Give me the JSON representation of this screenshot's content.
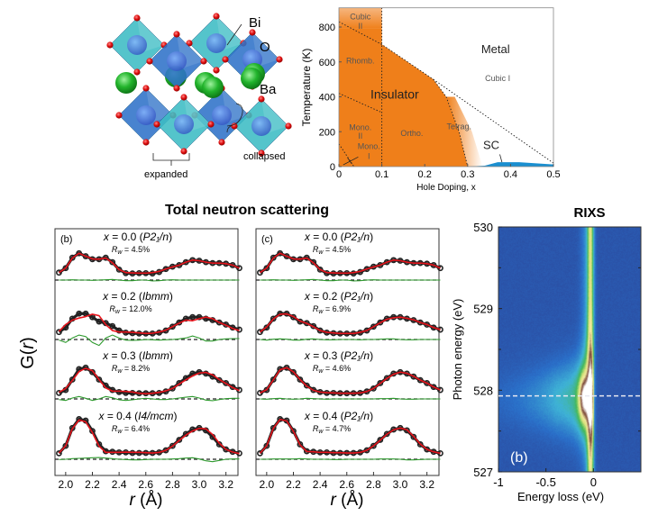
{
  "structure": {
    "labels": {
      "bi": "Bi",
      "o": "O",
      "ba": "Ba",
      "collapsed": "collapsed",
      "expanded": "expanded"
    },
    "colors": {
      "octahedron_light": "#3cbcc4",
      "octahedron_dark": "#2f72c8",
      "bi_atom": "#3f7fd8",
      "o_atom": "#e01010",
      "ba_atom": "#22b42c"
    }
  },
  "phase_diagram": {
    "ylabel": "Temperature (K)",
    "xlabel": "Hole Doping, x",
    "xticks": [
      "0",
      "0.1",
      "0.2",
      "0.3",
      "0.4",
      "0.5"
    ],
    "yticks": [
      "0",
      "200",
      "400",
      "600",
      "800"
    ],
    "xlim": [
      0,
      0.5
    ],
    "ylim": [
      0,
      910
    ],
    "regions": {
      "cubic2_a": "Cubic",
      "cubic2_b": "II",
      "rhomb": "Rhomb.",
      "insulator": "Insulator",
      "mono2_a": "Mono.",
      "mono2_b": "II",
      "mono1_a": "Mono.",
      "mono1_b": "I",
      "ortho": "Ortho.",
      "tetrag": "Tetrag.",
      "metal": "Metal",
      "cubic1": "Cubic I",
      "sc": "SC"
    },
    "boundaries": {
      "insulator_metal": [
        [
          0,
          830
        ],
        [
          0.1,
          700
        ],
        [
          0.22,
          500
        ],
        [
          0.25,
          400
        ],
        [
          0.28,
          200
        ],
        [
          0.3,
          0
        ]
      ],
      "tetragonal_cubic": [
        [
          0.22,
          500
        ],
        [
          0.5,
          20
        ]
      ],
      "rhomb_mono": [
        [
          0,
          420
        ],
        [
          0.1,
          310
        ]
      ],
      "mono2_mono1": [
        [
          0,
          130
        ],
        [
          0.035,
          0
        ]
      ],
      "x_0_1": [
        [
          0.1,
          0
        ],
        [
          0.1,
          910
        ]
      ],
      "sc_dome": [
        [
          0.3,
          0
        ],
        [
          0.34,
          5
        ],
        [
          0.37,
          25
        ],
        [
          0.42,
          25
        ],
        [
          0.5,
          12
        ],
        [
          0.5,
          0
        ]
      ]
    },
    "colors": {
      "insulator": "#ef7f1a",
      "sc": "#1a8fd0"
    }
  },
  "neutron": {
    "title": "Total neutron scattering",
    "ylabel_main": "G(",
    "ylabel_var": "r",
    "ylabel_end": ")",
    "xlabel_var": "r",
    "xlabel_unit": " (Å)",
    "x_symbol": "x",
    "rw_symbol": "R",
    "rw_sub": "w",
    "colors": {
      "data": "#222222",
      "fit": "#e8141c",
      "difference": "#2e9a2e"
    }
  },
  "chart_data": [
    {
      "type": "line",
      "panel": "(b)",
      "xlim": [
        1.92,
        3.29
      ],
      "xticks": [
        "2.0",
        "2.2",
        "2.4",
        "2.6",
        "2.8",
        "3.0",
        "3.2"
      ],
      "r": [
        1.95,
        2.0,
        2.05,
        2.1,
        2.15,
        2.2,
        2.25,
        2.3,
        2.35,
        2.4,
        2.45,
        2.5,
        2.55,
        2.6,
        2.65,
        2.7,
        2.75,
        2.8,
        2.85,
        2.9,
        2.95,
        3.0,
        3.05,
        3.1,
        3.15,
        3.2,
        3.25,
        3.3
      ],
      "series": [
        {
          "x": "0.0",
          "space_group": "P2₁/n",
          "rw": "4.5%",
          "observed": [
            0.1,
            0.25,
            0.6,
            0.75,
            0.65,
            0.55,
            0.55,
            0.6,
            0.45,
            0.2,
            0.08,
            0.07,
            0.08,
            0.08,
            0.07,
            0.12,
            0.22,
            0.3,
            0.35,
            0.45,
            0.52,
            0.5,
            0.45,
            0.42,
            0.42,
            0.4,
            0.35,
            0.25
          ],
          "difference": [
            0,
            0,
            0.01,
            0,
            0,
            -0.01,
            0,
            0.01,
            0.02,
            0,
            -0.02,
            -0.02,
            0,
            0,
            -0.03,
            -0.02,
            0,
            0.01,
            0,
            0,
            0,
            0,
            0,
            0,
            0,
            0,
            0,
            0
          ]
        },
        {
          "x": "0.2",
          "space_group": "Ibmm",
          "rw": "12.0%",
          "observed": [
            0.1,
            0.25,
            0.55,
            0.72,
            0.72,
            0.6,
            0.45,
            0.4,
            0.3,
            0.15,
            0.08,
            0.06,
            0.05,
            0.05,
            0.05,
            0.08,
            0.15,
            0.28,
            0.42,
            0.55,
            0.6,
            0.6,
            0.55,
            0.5,
            0.42,
            0.35,
            0.25,
            0.18
          ],
          "difference": [
            -0.02,
            -0.1,
            0.05,
            0.15,
            0.1,
            -0.1,
            -0.2,
            0.05,
            0.15,
            0.05,
            -0.02,
            -0.03,
            -0.02,
            0,
            -0.01,
            -0.02,
            -0.01,
            0,
            0.02,
            0.05,
            0.12,
            0.05,
            -0.05,
            -0.05,
            0,
            0.02,
            0.03,
            0.03
          ]
        },
        {
          "x": "0.3",
          "space_group": "Ibmm",
          "rw": "8.2%",
          "observed": [
            0.05,
            0.15,
            0.5,
            0.85,
            0.9,
            0.75,
            0.5,
            0.3,
            0.15,
            0.08,
            0.05,
            0.05,
            0.04,
            0.04,
            0.04,
            0.05,
            0.1,
            0.2,
            0.38,
            0.55,
            0.7,
            0.75,
            0.7,
            0.6,
            0.48,
            0.38,
            0.25,
            0.15
          ],
          "difference": [
            -0.02,
            -0.05,
            0.03,
            0.08,
            0.02,
            -0.05,
            0,
            0.08,
            0.04,
            -0.03,
            -0.05,
            -0.03,
            0,
            0.02,
            0,
            -0.02,
            -0.02,
            0,
            0.03,
            0.06,
            0.08,
            0.03,
            -0.04,
            -0.06,
            -0.02,
            0.01,
            0.02,
            0.02
          ]
        },
        {
          "x": "0.4",
          "space_group": "I4/mcm",
          "rw": "6.4%",
          "observed": [
            0.05,
            0.3,
            0.9,
            1.2,
            1.15,
            0.8,
            0.35,
            0.12,
            0.1,
            0.08,
            0.08,
            0.06,
            0.06,
            0.06,
            0.06,
            0.08,
            0.15,
            0.3,
            0.5,
            0.7,
            0.85,
            0.9,
            0.82,
            0.6,
            0.35,
            0.18,
            0.1,
            0.05
          ],
          "difference": [
            -0.01,
            0,
            0.02,
            0.03,
            0.04,
            0.05,
            0.06,
            0.04,
            0.02,
            0,
            -0.01,
            -0.02,
            -0.02,
            -0.01,
            0,
            0,
            0,
            0.01,
            0.02,
            0.04,
            0.05,
            0.01,
            -0.05,
            -0.08,
            -0.04,
            0,
            0.01,
            0.01
          ]
        }
      ]
    },
    {
      "type": "line",
      "panel": "(c)",
      "xlim": [
        1.92,
        3.29
      ],
      "xticks": [
        "2.0",
        "2.2",
        "2.4",
        "2.6",
        "2.8",
        "3.0",
        "3.2"
      ],
      "r": [
        1.95,
        2.0,
        2.05,
        2.1,
        2.15,
        2.2,
        2.25,
        2.3,
        2.35,
        2.4,
        2.45,
        2.5,
        2.55,
        2.6,
        2.65,
        2.7,
        2.75,
        2.8,
        2.85,
        2.9,
        2.95,
        3.0,
        3.05,
        3.1,
        3.15,
        3.2,
        3.25,
        3.3
      ],
      "series": [
        {
          "x": "0.0",
          "space_group": "P2₁/n",
          "rw": "4.5%",
          "observed": [
            0.1,
            0.25,
            0.6,
            0.75,
            0.65,
            0.55,
            0.55,
            0.6,
            0.45,
            0.2,
            0.08,
            0.07,
            0.08,
            0.08,
            0.07,
            0.12,
            0.22,
            0.3,
            0.35,
            0.45,
            0.52,
            0.5,
            0.45,
            0.42,
            0.42,
            0.4,
            0.35,
            0.25
          ],
          "difference": [
            0,
            0,
            0.01,
            0,
            0,
            -0.01,
            0,
            0.01,
            0.02,
            0,
            -0.02,
            -0.02,
            0,
            0,
            -0.03,
            -0.02,
            0,
            0.01,
            0,
            0,
            0,
            0,
            0,
            0,
            0,
            0,
            0,
            0
          ]
        },
        {
          "x": "0.2",
          "space_group": "P2₁/n",
          "rw": "6.9%",
          "observed": [
            0.1,
            0.25,
            0.55,
            0.72,
            0.72,
            0.6,
            0.45,
            0.4,
            0.3,
            0.15,
            0.08,
            0.06,
            0.05,
            0.05,
            0.05,
            0.08,
            0.15,
            0.28,
            0.42,
            0.55,
            0.6,
            0.6,
            0.55,
            0.5,
            0.42,
            0.35,
            0.25,
            0.18
          ],
          "difference": [
            0,
            -0.02,
            0.01,
            0.02,
            0.01,
            -0.02,
            -0.02,
            0.01,
            0.02,
            0,
            -0.01,
            -0.01,
            0,
            0,
            0,
            -0.01,
            0,
            0,
            0.01,
            0.02,
            0.02,
            0,
            -0.01,
            -0.01,
            0,
            0,
            0,
            0
          ]
        },
        {
          "x": "0.3",
          "space_group": "P2₁/n",
          "rw": "4.6%",
          "observed": [
            0.05,
            0.15,
            0.5,
            0.85,
            0.9,
            0.75,
            0.5,
            0.3,
            0.15,
            0.08,
            0.05,
            0.05,
            0.04,
            0.04,
            0.04,
            0.05,
            0.1,
            0.2,
            0.38,
            0.55,
            0.7,
            0.75,
            0.7,
            0.6,
            0.48,
            0.38,
            0.25,
            0.15
          ],
          "difference": [
            0,
            -0.01,
            0.01,
            0.02,
            0,
            -0.01,
            0,
            0.02,
            0.01,
            0,
            -0.01,
            0,
            0,
            0,
            0,
            0,
            0,
            0,
            0.01,
            0.01,
            0.02,
            0,
            -0.01,
            -0.01,
            0,
            0,
            0,
            0
          ]
        },
        {
          "x": "0.4",
          "space_group": "P2₁/n",
          "rw": "4.7%",
          "observed": [
            0.05,
            0.3,
            0.9,
            1.2,
            1.15,
            0.8,
            0.35,
            0.12,
            0.1,
            0.08,
            0.08,
            0.06,
            0.06,
            0.06,
            0.06,
            0.08,
            0.15,
            0.3,
            0.5,
            0.7,
            0.85,
            0.9,
            0.82,
            0.6,
            0.35,
            0.18,
            0.1,
            0.05
          ],
          "difference": [
            0,
            0,
            0.01,
            0.01,
            0.01,
            0.01,
            0.02,
            0.01,
            0,
            0,
            0,
            -0.01,
            -0.01,
            0,
            0,
            0,
            0,
            0,
            0.01,
            0.01,
            0.01,
            0,
            -0.02,
            -0.02,
            -0.01,
            0,
            0,
            0
          ]
        }
      ]
    },
    {
      "type": "heatmap",
      "title": "RIXS",
      "panel": "(b)",
      "xlabel": "Energy loss (eV)",
      "ylabel": "Photon energy (eV)",
      "xlim": [
        -1,
        0.5
      ],
      "ylim": [
        527,
        530
      ],
      "xticks": [
        "-1",
        "-0.5",
        "0"
      ],
      "yticks": [
        "527",
        "528",
        "529",
        "530"
      ],
      "reference_line_photon_energy": 527.93,
      "features": {
        "elastic_line_energy_loss": 0,
        "resonance_energy_loss": -0.1,
        "resonance_photon_energy": 527.9
      },
      "colormap": [
        "#2a3d8f",
        "#2a6fc9",
        "#3fb3d6",
        "#44b85a",
        "#d6e27a",
        "#f3e9a0",
        "#7a4636",
        "#ffffff"
      ]
    }
  ]
}
